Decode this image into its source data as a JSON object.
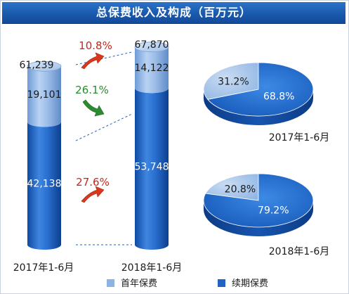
{
  "title": "总保费收入及构成（百万元）",
  "chart_data": [
    {
      "type": "bar",
      "stacked": true,
      "categories": [
        "2017年1-6月",
        "2018年1-6月"
      ],
      "series": [
        {
          "name": "续期保费",
          "values": [
            42138,
            53748
          ]
        },
        {
          "name": "首年保费",
          "values": [
            19101,
            14122
          ]
        }
      ],
      "value_labels": [
        [
          "42,138",
          "19,101"
        ],
        [
          "53,748",
          "14,122"
        ]
      ],
      "totals": [
        61239,
        67870
      ],
      "total_labels": [
        "61,239",
        "67,870"
      ],
      "growth": {
        "total": "10.8%",
        "first_year": "26.1%",
        "renewal": "27.6%"
      },
      "colors": {
        "首年保费": "#8db3e2",
        "续期保费": "#1f63c4"
      }
    },
    {
      "type": "pie",
      "label": "2017年1-6月",
      "slices": [
        {
          "name": "首年保费",
          "value": 31.2,
          "label": "31.2%"
        },
        {
          "name": "续期保费",
          "value": 68.8,
          "label": "68.8%"
        }
      ]
    },
    {
      "type": "pie",
      "label": "2018年1-6月",
      "slices": [
        {
          "name": "首年保费",
          "value": 20.8,
          "label": "20.8%"
        },
        {
          "name": "续期保费",
          "value": 79.2,
          "label": "79.2%"
        }
      ]
    }
  ],
  "legend": {
    "items": [
      {
        "label": "首年保费",
        "color": "#8db3e2"
      },
      {
        "label": "续期保费",
        "color": "#1f63c4"
      }
    ],
    "position": "bottom"
  }
}
